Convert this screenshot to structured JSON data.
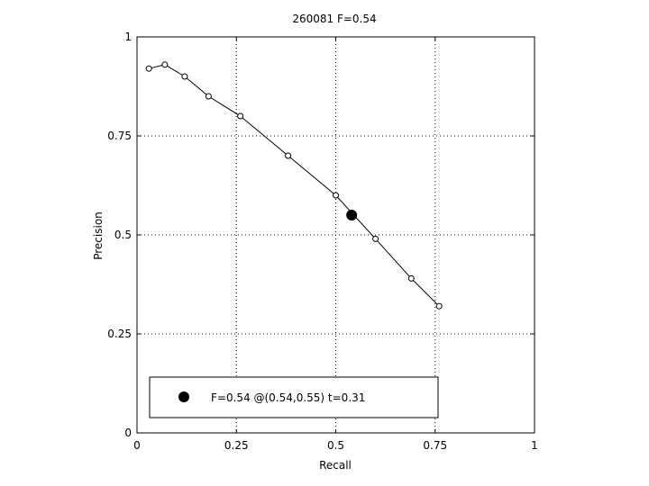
{
  "chart_data": {
    "type": "line",
    "title": "260081 F=0.54",
    "xlabel": "Recall",
    "ylabel": "Precision",
    "xlim": [
      0,
      1
    ],
    "ylim": [
      0,
      1
    ],
    "grid": true,
    "x_ticks": [
      0,
      0.25,
      0.5,
      0.75,
      1
    ],
    "x_tick_labels": [
      "0",
      "0.25",
      "0.5",
      "0.75",
      "1"
    ],
    "y_ticks": [
      0,
      0.25,
      0.5,
      0.75,
      1
    ],
    "y_tick_labels": [
      "0",
      "0.25",
      "0.5",
      "0.75",
      "1"
    ],
    "series": [
      {
        "x": [
          0.03,
          0.07,
          0.12,
          0.18,
          0.26,
          0.38,
          0.5,
          0.6,
          0.69,
          0.76
        ],
        "y": [
          0.92,
          0.93,
          0.9,
          0.85,
          0.8,
          0.7,
          0.6,
          0.49,
          0.39,
          0.32
        ]
      }
    ],
    "highlight_point": {
      "x": 0.54,
      "y": 0.55
    },
    "legend": {
      "position": "bottom-left",
      "label": "F=0.54 @(0.54,0.55) t=0.31"
    }
  }
}
